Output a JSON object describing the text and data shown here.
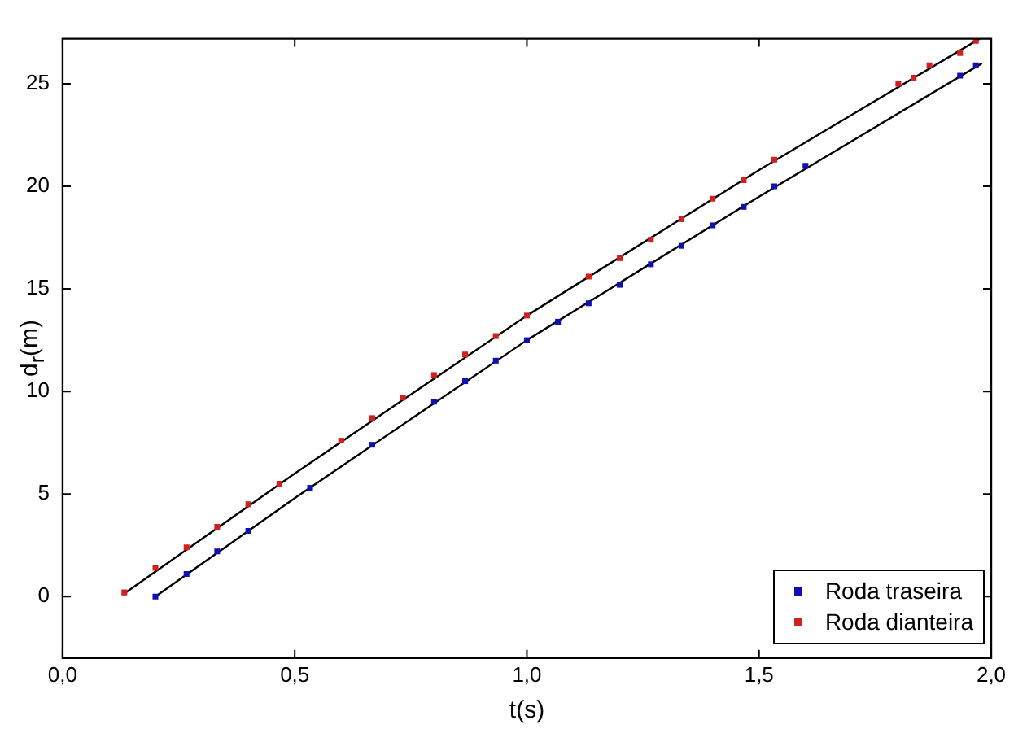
{
  "chart_data": {
    "type": "scatter",
    "xlabel": "t(s)",
    "ylabel": "d$_{r}$(m)",
    "xlim": [
      0,
      2
    ],
    "ylim": [
      -3,
      27.2
    ],
    "xticks": [
      {
        "value": 0,
        "label": "0,0"
      },
      {
        "value": 0.5,
        "label": "0,5"
      },
      {
        "value": 1,
        "label": "1,0"
      },
      {
        "value": 1.5,
        "label": "1,5"
      },
      {
        "value": 2,
        "label": "2,0"
      }
    ],
    "yticks": [
      0,
      5,
      10,
      15,
      20,
      25
    ],
    "grid": false,
    "legend": "bottom right",
    "marker": "square",
    "series": [
      {
        "name": "Roda traseira",
        "color": "#1010b0",
        "x": [
          0.2,
          0.267,
          0.333,
          0.4,
          0.533,
          0.667,
          0.8,
          0.867,
          0.933,
          1.0,
          1.067,
          1.133,
          1.2,
          1.267,
          1.333,
          1.4,
          1.467,
          1.533,
          1.6,
          1.933,
          1.967
        ],
        "values": [
          0,
          1.1,
          2.2,
          3.2,
          5.3,
          7.4,
          9.5,
          10.5,
          11.5,
          12.5,
          13.4,
          14.3,
          15.2,
          16.2,
          17.1,
          18.1,
          19.0,
          20.0,
          21.0,
          25.4,
          25.9
        ]
      },
      {
        "name": "Roda dianteira",
        "color": "#d02020",
        "x": [
          0.133,
          0.2,
          0.267,
          0.333,
          0.4,
          0.467,
          0.6,
          0.667,
          0.733,
          0.8,
          0.867,
          0.933,
          1.0,
          1.133,
          1.2,
          1.267,
          1.333,
          1.4,
          1.467,
          1.533,
          1.8,
          1.833,
          1.867,
          1.933,
          1.967
        ],
        "values": [
          0.2,
          1.4,
          2.4,
          3.4,
          4.5,
          5.5,
          7.6,
          8.7,
          9.7,
          10.8,
          11.8,
          12.7,
          13.7,
          15.6,
          16.5,
          17.4,
          18.4,
          19.4,
          20.3,
          21.3,
          25.0,
          25.3,
          25.9,
          26.5,
          27.1
        ]
      },
      {
        "type": "line",
        "color": "#000000",
        "marker": "none",
        "line_style": "solid",
        "x": [
          0.2,
          0.5,
          1.0,
          1.5,
          1.98
        ],
        "values": [
          0,
          4.8,
          12.5,
          19.5,
          26.0
        ]
      },
      {
        "type": "line",
        "color": "#000000",
        "marker": "none",
        "line_style": "solid",
        "x": [
          0.13,
          0.5,
          1.0,
          1.5,
          1.975
        ],
        "values": [
          0.1,
          6.0,
          13.7,
          20.8,
          27.2
        ]
      }
    ]
  }
}
